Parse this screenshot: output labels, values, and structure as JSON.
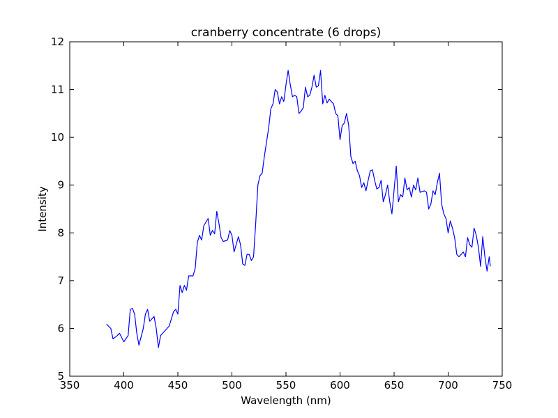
{
  "chart_data": {
    "type": "line",
    "title": "cranberry concentrate (6 drops)",
    "xlabel": "Wavelength (nm)",
    "ylabel": "Intensity",
    "x": [
      384,
      388,
      390,
      394,
      396,
      400,
      404,
      406,
      408,
      410,
      412,
      414,
      418,
      420,
      422,
      424,
      428,
      430,
      432,
      434,
      438,
      442,
      446,
      448,
      450,
      452,
      454,
      456,
      458,
      460,
      464,
      466,
      468,
      470,
      472,
      474,
      478,
      480,
      482,
      484,
      486,
      488,
      490,
      492,
      496,
      498,
      500,
      502,
      506,
      508,
      510,
      512,
      514,
      516,
      518,
      520,
      522,
      524,
      526,
      528,
      530,
      534,
      536,
      538,
      540,
      542,
      544,
      546,
      548,
      550,
      552,
      554,
      556,
      558,
      560,
      562,
      564,
      566,
      568,
      570,
      572,
      574,
      576,
      578,
      580,
      582,
      584,
      586,
      588,
      590,
      594,
      596,
      598,
      600,
      602,
      604,
      606,
      608,
      610,
      612,
      614,
      616,
      618,
      620,
      622,
      624,
      626,
      628,
      630,
      632,
      634,
      636,
      638,
      640,
      642,
      644,
      646,
      648,
      650,
      652,
      654,
      656,
      658,
      660,
      662,
      664,
      666,
      668,
      670,
      672,
      674,
      678,
      680,
      682,
      684,
      686,
      688,
      690,
      692,
      694,
      696,
      698,
      700,
      702,
      704,
      706,
      708,
      710,
      712,
      714,
      716,
      718,
      720,
      722,
      724,
      726,
      728,
      730,
      732,
      734,
      736,
      738,
      739
    ],
    "series": [
      {
        "name": "Intensity",
        "color": "#0000ff",
        "values": [
          6.09,
          6.0,
          5.78,
          5.85,
          5.9,
          5.72,
          5.85,
          6.4,
          6.42,
          6.3,
          5.9,
          5.65,
          6.0,
          6.3,
          6.4,
          6.15,
          6.25,
          6.0,
          5.6,
          5.85,
          5.95,
          6.05,
          6.35,
          6.4,
          6.3,
          6.9,
          6.75,
          6.9,
          6.8,
          7.1,
          7.1,
          7.25,
          7.8,
          7.95,
          7.85,
          8.15,
          8.3,
          7.95,
          8.05,
          7.98,
          8.45,
          8.2,
          7.9,
          7.82,
          7.85,
          8.05,
          7.95,
          7.6,
          7.92,
          7.75,
          7.35,
          7.32,
          7.55,
          7.55,
          7.42,
          7.5,
          8.2,
          9.0,
          9.2,
          9.25,
          9.6,
          10.2,
          10.6,
          10.7,
          11.0,
          10.95,
          10.7,
          10.85,
          10.75,
          11.1,
          11.4,
          11.1,
          10.85,
          10.88,
          10.85,
          10.5,
          10.55,
          10.62,
          11.05,
          10.85,
          10.88,
          11.05,
          11.3,
          11.05,
          11.08,
          11.4,
          10.7,
          10.88,
          10.72,
          10.8,
          10.7,
          10.5,
          10.45,
          9.95,
          10.25,
          10.3,
          10.5,
          10.25,
          9.6,
          9.45,
          9.5,
          9.3,
          9.2,
          8.95,
          9.05,
          8.88,
          9.1,
          9.3,
          9.32,
          9.1,
          8.92,
          8.95,
          9.1,
          8.65,
          8.8,
          9.0,
          8.65,
          8.4,
          8.9,
          9.4,
          8.65,
          8.8,
          8.75,
          9.15,
          8.9,
          8.95,
          8.75,
          9.0,
          8.9,
          9.15,
          8.85,
          8.88,
          8.85,
          8.5,
          8.6,
          8.88,
          8.8,
          9.05,
          9.25,
          8.6,
          8.4,
          8.3,
          8.0,
          8.25,
          8.1,
          7.9,
          7.55,
          7.5,
          7.55,
          7.6,
          7.5,
          7.9,
          7.75,
          7.7,
          8.1,
          7.95,
          7.7,
          7.3,
          7.92,
          7.5,
          7.2,
          7.5,
          7.3
        ]
      }
    ],
    "xlim": [
      350,
      750
    ],
    "xticks": [
      350,
      400,
      450,
      500,
      550,
      600,
      650,
      700,
      750
    ],
    "ylim": [
      5,
      12
    ],
    "yticks": [
      5,
      6,
      7,
      8,
      9,
      10,
      11,
      12
    ],
    "grid": false
  }
}
